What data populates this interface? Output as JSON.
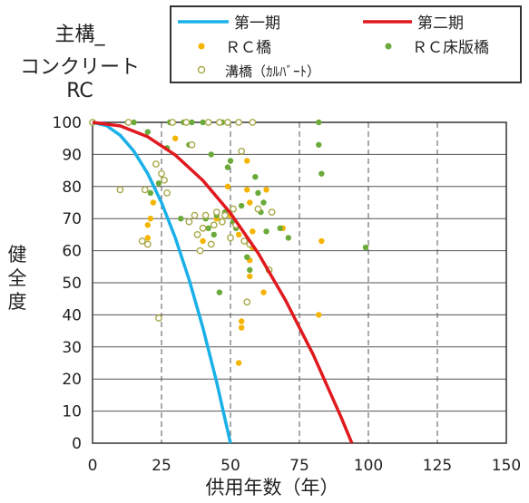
{
  "title": {
    "line1": "主構_",
    "line2": "コンクリート",
    "line3": "RC"
  },
  "chart_data": {
    "type": "scatter",
    "xlabel": "供用年数（年）",
    "ylabel": "健全度",
    "xlim": [
      0,
      150
    ],
    "ylim": [
      0,
      100
    ],
    "xticks": [
      0,
      25,
      50,
      75,
      100,
      125,
      150
    ],
    "yticks": [
      0,
      10,
      20,
      30,
      40,
      50,
      60,
      70,
      80,
      90,
      100
    ],
    "grid": {
      "vertical": "dashed",
      "horizontal": "solid"
    },
    "legend_position": "top",
    "lines": [
      {
        "name": "第一期",
        "color": "#1ab0e8",
        "x": [
          0,
          5,
          10,
          15,
          20,
          25,
          30,
          35,
          40,
          45,
          50
        ],
        "y": [
          100,
          99,
          96,
          91,
          84,
          75,
          64,
          51,
          36,
          19,
          0
        ]
      },
      {
        "name": "第二期",
        "color": "#e0191e",
        "x": [
          0,
          10,
          20,
          30,
          40,
          50,
          60,
          70,
          80,
          90,
          94
        ],
        "y": [
          100,
          98.9,
          95.5,
          89.8,
          81.9,
          71.7,
          59.3,
          44.5,
          27.6,
          8.3,
          0
        ]
      }
    ],
    "series": [
      {
        "name": "ＲＣ橋",
        "color": "#f5b400",
        "marker": "filled",
        "points": [
          [
            20,
            68
          ],
          [
            20,
            64
          ],
          [
            21,
            70
          ],
          [
            22,
            75
          ],
          [
            30,
            95
          ],
          [
            40,
            63
          ],
          [
            45,
            70
          ],
          [
            49,
            80
          ],
          [
            50,
            71
          ],
          [
            53,
            65
          ],
          [
            54,
            38
          ],
          [
            54,
            36
          ],
          [
            56,
            88
          ],
          [
            56,
            79
          ],
          [
            57,
            75
          ],
          [
            57,
            57
          ],
          [
            57,
            52
          ],
          [
            58,
            66
          ],
          [
            58,
            61
          ],
          [
            62,
            47
          ],
          [
            63,
            79
          ],
          [
            69,
            67
          ],
          [
            82,
            40
          ],
          [
            83,
            63
          ],
          [
            53,
            25
          ]
        ]
      },
      {
        "name": "ＲＣ床版橋",
        "color": "#6aaa3a",
        "marker": "filled",
        "points": [
          [
            15,
            100
          ],
          [
            20,
            97
          ],
          [
            21,
            78
          ],
          [
            24,
            81
          ],
          [
            27,
            92
          ],
          [
            28,
            100
          ],
          [
            32,
            70
          ],
          [
            33,
            100
          ],
          [
            35,
            93
          ],
          [
            36,
            100
          ],
          [
            40,
            100
          ],
          [
            41,
            70
          ],
          [
            42,
            67
          ],
          [
            43,
            90
          ],
          [
            44,
            65
          ],
          [
            45,
            71
          ],
          [
            46,
            47
          ],
          [
            47,
            100
          ],
          [
            48,
            72
          ],
          [
            49,
            86
          ],
          [
            50,
            88
          ],
          [
            51,
            69
          ],
          [
            52,
            67
          ],
          [
            53,
            100
          ],
          [
            54,
            74
          ],
          [
            55,
            63
          ],
          [
            56,
            58
          ],
          [
            57,
            54
          ],
          [
            58,
            100
          ],
          [
            59,
            83
          ],
          [
            60,
            78
          ],
          [
            61,
            72
          ],
          [
            62,
            75
          ],
          [
            63,
            66
          ],
          [
            68,
            67
          ],
          [
            71,
            64
          ],
          [
            82,
            100
          ],
          [
            82,
            93
          ],
          [
            83,
            84
          ],
          [
            99,
            61
          ]
        ]
      },
      {
        "name": "溝橋（ｶﾙﾊﾞｰﾄ）",
        "color": "#a8a84a",
        "marker": "open",
        "points": [
          [
            0,
            100
          ],
          [
            10,
            79
          ],
          [
            13,
            100
          ],
          [
            18,
            63
          ],
          [
            19,
            79
          ],
          [
            20,
            62
          ],
          [
            23,
            87
          ],
          [
            24,
            39
          ],
          [
            25,
            84
          ],
          [
            26,
            82
          ],
          [
            27,
            78
          ],
          [
            29,
            100
          ],
          [
            34,
            100
          ],
          [
            35,
            69
          ],
          [
            36,
            93
          ],
          [
            37,
            71
          ],
          [
            38,
            65
          ],
          [
            39,
            60
          ],
          [
            40,
            67
          ],
          [
            41,
            71
          ],
          [
            42,
            100
          ],
          [
            43,
            62
          ],
          [
            44,
            68
          ],
          [
            45,
            72
          ],
          [
            46,
            100
          ],
          [
            47,
            69
          ],
          [
            48,
            71
          ],
          [
            49,
            100
          ],
          [
            50,
            64
          ],
          [
            51,
            73
          ],
          [
            52,
            68
          ],
          [
            53,
            100
          ],
          [
            54,
            91
          ],
          [
            55,
            63
          ],
          [
            56,
            44
          ],
          [
            57,
            62
          ],
          [
            58,
            100
          ],
          [
            60,
            73
          ],
          [
            64,
            54
          ],
          [
            65,
            72
          ]
        ]
      }
    ]
  }
}
